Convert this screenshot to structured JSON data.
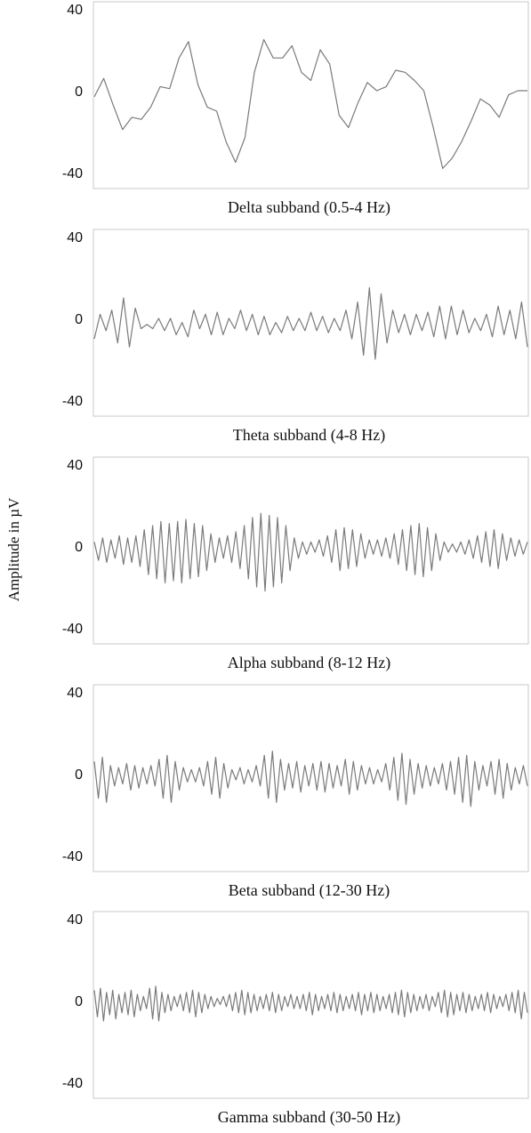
{
  "figure": {
    "ylabel": "Amplitude in µV"
  },
  "chart_data": [
    {
      "type": "line",
      "title": "Delta subband (0.5-4 Hz)",
      "ylim": [
        -45,
        45
      ],
      "yticks": [
        40,
        0,
        -40
      ],
      "grid": false,
      "series": [
        {
          "color": "#7a7a7a",
          "values": [
            -3,
            6,
            -7,
            -19,
            -13,
            -14,
            -8,
            2,
            1,
            16,
            24,
            3,
            -8,
            -10,
            -25,
            -35,
            -23,
            9,
            25,
            16,
            16,
            22,
            9,
            5,
            20,
            13,
            -12,
            -18,
            -6,
            4,
            0,
            2,
            10,
            9,
            5,
            0,
            -18,
            -38,
            -33,
            -25,
            -15,
            -4,
            -7,
            -13,
            -2,
            0,
            0
          ]
        }
      ]
    },
    {
      "type": "line",
      "title": "Theta subband (4-8 Hz)",
      "ylim": [
        -45,
        45
      ],
      "yticks": [
        40,
        0,
        -40
      ],
      "grid": false,
      "series": [
        {
          "color": "#7a7a7a",
          "values": [
            -10,
            2,
            -6,
            4,
            -12,
            10,
            -14,
            5,
            -5,
            -3,
            -5,
            0,
            -6,
            0,
            -8,
            -2,
            -9,
            4,
            -5,
            2,
            -8,
            3,
            -8,
            0,
            -5,
            4,
            -6,
            2,
            -8,
            1,
            -8,
            -2,
            -7,
            1,
            -6,
            0,
            -6,
            3,
            -6,
            1,
            -7,
            0,
            -6,
            4,
            -10,
            8,
            -18,
            15,
            -20,
            12,
            -12,
            4,
            -7,
            2,
            -8,
            2,
            -6,
            3,
            -9,
            6,
            -10,
            6,
            -8,
            4,
            -7,
            0,
            -6,
            2,
            -9,
            6,
            -8,
            4,
            -10,
            8,
            -14
          ]
        }
      ]
    },
    {
      "type": "line",
      "title": "Alpha subband (8-12 Hz)",
      "ylim": [
        -45,
        45
      ],
      "yticks": [
        40,
        0,
        -40
      ],
      "grid": false,
      "series": [
        {
          "color": "#7a7a7a",
          "values": [
            2,
            -7,
            4,
            -8,
            3,
            -6,
            5,
            -9,
            4,
            -8,
            5,
            -10,
            8,
            -14,
            10,
            -16,
            12,
            -18,
            11,
            -17,
            12,
            -18,
            13,
            -16,
            11,
            -15,
            10,
            -12,
            6,
            -8,
            4,
            -6,
            5,
            -8,
            7,
            -11,
            10,
            -16,
            14,
            -20,
            16,
            -22,
            15,
            -20,
            14,
            -18,
            10,
            -12,
            4,
            -6,
            2,
            -4,
            2,
            -3,
            3,
            -5,
            5,
            -8,
            8,
            -12,
            9,
            -11,
            8,
            -10,
            6,
            -6,
            3,
            -4,
            3,
            -5,
            4,
            -6,
            6,
            -9,
            8,
            -12,
            10,
            -14,
            11,
            -15,
            9,
            -12,
            6,
            -7,
            2,
            -3,
            1,
            -3,
            2,
            -4,
            3,
            -6,
            5,
            -8,
            7,
            -10,
            8,
            -11,
            6,
            -7,
            4,
            -5,
            3,
            -4,
            2
          ]
        }
      ]
    },
    {
      "type": "line",
      "title": "Beta subband (12-30 Hz)",
      "ylim": [
        -45,
        45
      ],
      "yticks": [
        40,
        0,
        -40
      ],
      "grid": false,
      "series": [
        {
          "color": "#5a5a5a",
          "values": [
            6,
            -12,
            8,
            -14,
            4,
            -6,
            3,
            -5,
            5,
            -8,
            4,
            -7,
            3,
            -5,
            4,
            -6,
            7,
            -12,
            9,
            -14,
            6,
            -8,
            3,
            -4,
            2,
            -4,
            3,
            -6,
            6,
            -10,
            8,
            -12,
            5,
            -7,
            2,
            -3,
            3,
            -5,
            2,
            -4,
            4,
            -6,
            9,
            -12,
            11,
            -14,
            7,
            -8,
            5,
            -7,
            6,
            -9,
            4,
            -6,
            5,
            -8,
            6,
            -9,
            5,
            -7,
            4,
            -6,
            7,
            -10,
            6,
            -8,
            4,
            -5,
            3,
            -5,
            2,
            -4,
            5,
            -8,
            8,
            -13,
            10,
            -15,
            7,
            -10,
            5,
            -7,
            4,
            -6,
            3,
            -5,
            5,
            -8,
            6,
            -10,
            8,
            -14,
            9,
            -16,
            6,
            -8,
            4,
            -6,
            6,
            -10,
            7,
            -12,
            5,
            -8,
            3,
            -5,
            4,
            -6
          ]
        }
      ]
    },
    {
      "type": "line",
      "title": "Gamma subband (30-50 Hz)",
      "ylim": [
        -45,
        45
      ],
      "yticks": [
        40,
        0,
        -40
      ],
      "grid": false,
      "series": [
        {
          "color": "#3a3a3a",
          "values": [
            5,
            -8,
            6,
            -10,
            4,
            -7,
            5,
            -9,
            3,
            -6,
            4,
            -7,
            5,
            -8,
            3,
            -5,
            2,
            -4,
            6,
            -9,
            7,
            -10,
            4,
            -6,
            3,
            -5,
            2,
            -3,
            3,
            -5,
            4,
            -6,
            5,
            -8,
            4,
            -6,
            3,
            -4,
            2,
            -3,
            1,
            -2,
            2,
            -3,
            3,
            -5,
            4,
            -6,
            5,
            -7,
            4,
            -6,
            3,
            -5,
            2,
            -4,
            3,
            -5,
            4,
            -6,
            3,
            -5,
            2,
            -3,
            3,
            -4,
            2,
            -4,
            3,
            -5,
            4,
            -7,
            3,
            -5,
            2,
            -4,
            3,
            -5,
            4,
            -6,
            3,
            -5,
            2,
            -4,
            3,
            -5,
            4,
            -7,
            3,
            -5,
            4,
            -6,
            3,
            -5,
            2,
            -4,
            3,
            -6,
            4,
            -7,
            5,
            -8,
            4,
            -6,
            3,
            -5,
            2,
            -4,
            3,
            -5,
            2,
            -3,
            4,
            -6,
            5,
            -8,
            4,
            -7,
            3,
            -5,
            4,
            -6,
            3,
            -5,
            2,
            -4,
            3,
            -5,
            4,
            -6,
            3,
            -4,
            2,
            -3,
            3,
            -5,
            4,
            -6,
            5,
            -9,
            4,
            -6
          ]
        }
      ]
    }
  ]
}
